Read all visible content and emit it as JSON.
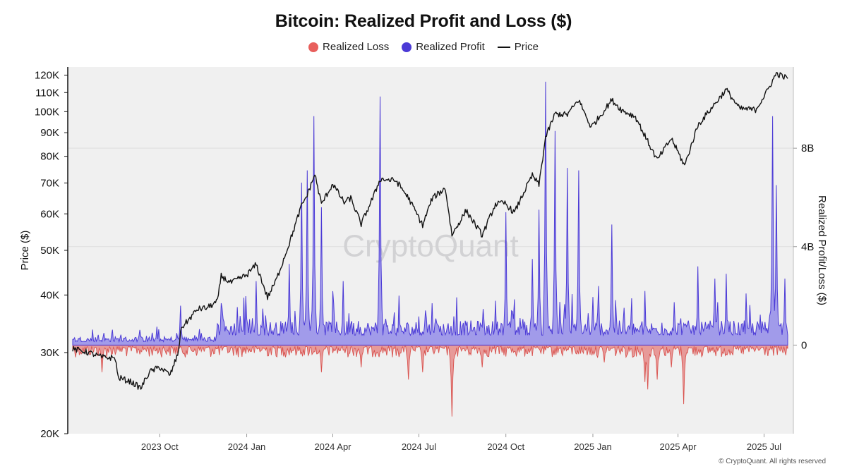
{
  "chart_data": {
    "type": "area",
    "title": "Bitcoin: Realized Profit and Loss ($)",
    "watermark": "CryptoQuant",
    "copyright": "© CryptoQuant. All rights reserved",
    "legend": [
      {
        "name": "Realized Loss",
        "color": "#e85f5c",
        "marker": "dot"
      },
      {
        "name": "Realized Profit",
        "color": "#4b3ad6",
        "marker": "dot"
      },
      {
        "name": "Price",
        "color": "#111111",
        "marker": "line"
      }
    ],
    "y_left": {
      "label": "Price ($)",
      "scale": "log",
      "range": [
        20000,
        125000
      ],
      "ticks": [
        20000,
        30000,
        40000,
        50000,
        60000,
        70000,
        80000,
        90000,
        100000,
        110000,
        120000
      ],
      "tick_labels": [
        "20K",
        "30K",
        "40K",
        "50K",
        "60K",
        "70K",
        "80K",
        "90K",
        "100K",
        "110K",
        "120K"
      ]
    },
    "y_right": {
      "label": "Realized Profit/Loss ($)",
      "range": [
        -3600000000,
        11300000000
      ],
      "ticks": [
        0,
        4000000000,
        8000000000
      ],
      "tick_labels": [
        "0",
        "4B",
        "8B"
      ]
    },
    "x_axis": {
      "range": [
        "2023-07-01",
        "2025-07-26"
      ],
      "ticks": [
        "2023-10-01",
        "2024-01-01",
        "2024-04-01",
        "2024-07-01",
        "2024-10-01",
        "2025-01-01",
        "2025-04-01",
        "2025-07-01"
      ],
      "tick_labels": [
        "2023 Oct",
        "2024 Jan",
        "2024 Apr",
        "2024 Jul",
        "2024 Oct",
        "2025 Jan",
        "2025 Apr",
        "2025 Jul"
      ]
    },
    "series": [
      {
        "name": "Price",
        "unit": "USD",
        "points": [
          [
            "2023-07-01",
            30500
          ],
          [
            "2023-07-10",
            30300
          ],
          [
            "2023-07-20",
            29900
          ],
          [
            "2023-08-01",
            29300
          ],
          [
            "2023-08-15",
            29200
          ],
          [
            "2023-08-18",
            26500
          ],
          [
            "2023-09-01",
            25900
          ],
          [
            "2023-09-11",
            25100
          ],
          [
            "2023-09-20",
            27200
          ],
          [
            "2023-10-01",
            27900
          ],
          [
            "2023-10-12",
            26800
          ],
          [
            "2023-10-20",
            29700
          ],
          [
            "2023-10-24",
            34000
          ],
          [
            "2023-11-01",
            35400
          ],
          [
            "2023-11-10",
            37300
          ],
          [
            "2023-11-20",
            37500
          ],
          [
            "2023-12-01",
            38700
          ],
          [
            "2023-12-05",
            44000
          ],
          [
            "2023-12-15",
            42500
          ],
          [
            "2024-01-01",
            44200
          ],
          [
            "2024-01-11",
            46600
          ],
          [
            "2024-01-23",
            39500
          ],
          [
            "2024-02-01",
            43000
          ],
          [
            "2024-02-15",
            51800
          ],
          [
            "2024-02-28",
            62500
          ],
          [
            "2024-03-05",
            66000
          ],
          [
            "2024-03-13",
            73100
          ],
          [
            "2024-03-20",
            63000
          ],
          [
            "2024-04-01",
            69700
          ],
          [
            "2024-04-13",
            63500
          ],
          [
            "2024-04-20",
            64900
          ],
          [
            "2024-05-01",
            57000
          ],
          [
            "2024-05-15",
            66200
          ],
          [
            "2024-05-21",
            71400
          ],
          [
            "2024-06-07",
            70800
          ],
          [
            "2024-06-20",
            65000
          ],
          [
            "2024-07-05",
            56700
          ],
          [
            "2024-07-15",
            64800
          ],
          [
            "2024-07-29",
            68200
          ],
          [
            "2024-08-05",
            54000
          ],
          [
            "2024-08-20",
            61000
          ],
          [
            "2024-09-06",
            53900
          ],
          [
            "2024-09-20",
            63000
          ],
          [
            "2024-09-30",
            63300
          ],
          [
            "2024-10-10",
            60300
          ],
          [
            "2024-10-21",
            67500
          ],
          [
            "2024-10-29",
            72700
          ],
          [
            "2024-11-05",
            69400
          ],
          [
            "2024-11-12",
            88000
          ],
          [
            "2024-11-22",
            98900
          ],
          [
            "2024-12-05",
            98500
          ],
          [
            "2024-12-17",
            106100
          ],
          [
            "2024-12-30",
            92500
          ],
          [
            "2025-01-07",
            96900
          ],
          [
            "2025-01-21",
            106000
          ],
          [
            "2025-02-01",
            100600
          ],
          [
            "2025-02-15",
            97500
          ],
          [
            "2025-02-25",
            88600
          ],
          [
            "2025-03-10",
            78500
          ],
          [
            "2025-03-25",
            87500
          ],
          [
            "2025-04-08",
            76300
          ],
          [
            "2025-04-22",
            93400
          ],
          [
            "2025-05-10",
            104000
          ],
          [
            "2025-05-22",
            111700
          ],
          [
            "2025-06-05",
            101500
          ],
          [
            "2025-06-22",
            101000
          ],
          [
            "2025-07-03",
            109600
          ],
          [
            "2025-07-14",
            121000
          ],
          [
            "2025-07-26",
            118000
          ]
        ]
      },
      {
        "name": "Realized Profit",
        "unit": "USD",
        "baseline_band": [
          400000000,
          1000000000
        ],
        "spikes": [
          [
            "2023-10-23",
            1600000000
          ],
          [
            "2023-12-05",
            1700000000
          ],
          [
            "2024-01-11",
            2600000000
          ],
          [
            "2024-02-15",
            3300000000
          ],
          [
            "2024-02-28",
            6600000000
          ],
          [
            "2024-03-05",
            7100000000
          ],
          [
            "2024-03-12",
            9300000000
          ],
          [
            "2024-03-20",
            5600000000
          ],
          [
            "2024-04-12",
            2600000000
          ],
          [
            "2024-05-21",
            10100000000
          ],
          [
            "2024-07-15",
            1700000000
          ],
          [
            "2024-09-20",
            1800000000
          ],
          [
            "2024-10-01",
            5400000000
          ],
          [
            "2024-10-29",
            3500000000
          ],
          [
            "2024-11-05",
            5500000000
          ],
          [
            "2024-11-12",
            10700000000
          ],
          [
            "2024-11-22",
            8700000000
          ],
          [
            "2024-12-05",
            7200000000
          ],
          [
            "2024-12-17",
            7100000000
          ],
          [
            "2025-01-07",
            2400000000
          ],
          [
            "2025-01-21",
            4900000000
          ],
          [
            "2025-02-25",
            2200000000
          ],
          [
            "2025-04-22",
            3200000000
          ],
          [
            "2025-05-10",
            2700000000
          ],
          [
            "2025-05-22",
            2900000000
          ],
          [
            "2025-07-10",
            9300000000
          ],
          [
            "2025-07-14",
            6500000000
          ],
          [
            "2025-07-23",
            2700000000
          ]
        ]
      },
      {
        "name": "Realized Loss",
        "unit": "USD",
        "baseline_band": [
          -50000000,
          -500000000
        ],
        "spikes": [
          [
            "2023-08-01",
            -1100000000
          ],
          [
            "2024-03-20",
            -1100000000
          ],
          [
            "2024-05-01",
            -900000000
          ],
          [
            "2024-06-20",
            -1400000000
          ],
          [
            "2024-07-05",
            -1100000000
          ],
          [
            "2024-08-05",
            -2900000000
          ],
          [
            "2024-09-06",
            -900000000
          ],
          [
            "2025-01-13",
            -700000000
          ],
          [
            "2025-02-25",
            -1500000000
          ],
          [
            "2025-02-28",
            -1800000000
          ],
          [
            "2025-03-10",
            -1400000000
          ],
          [
            "2025-03-25",
            -900000000
          ],
          [
            "2025-04-07",
            -2400000000
          ]
        ]
      }
    ]
  }
}
